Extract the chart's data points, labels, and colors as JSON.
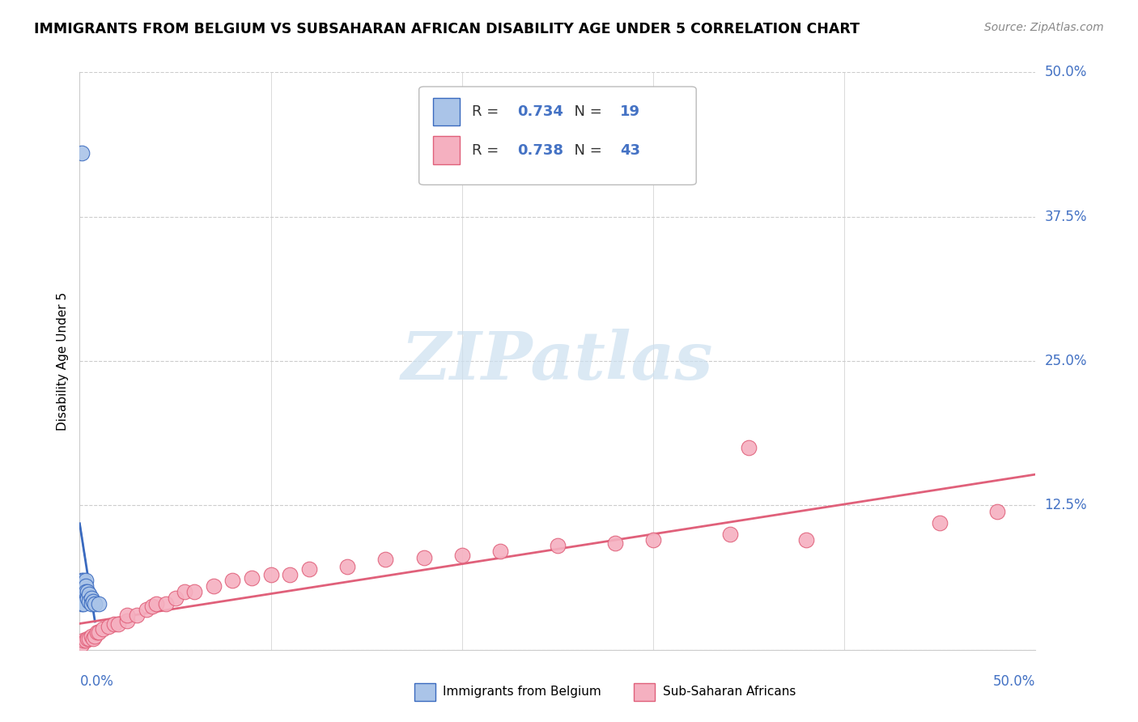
{
  "title": "IMMIGRANTS FROM BELGIUM VS SUBSAHARAN AFRICAN DISABILITY AGE UNDER 5 CORRELATION CHART",
  "source": "Source: ZipAtlas.com",
  "ylabel": "Disability Age Under 5",
  "y_tick_labels": [
    "12.5%",
    "25.0%",
    "37.5%",
    "50.0%"
  ],
  "y_tick_values": [
    0.125,
    0.25,
    0.375,
    0.5
  ],
  "xlim": [
    0,
    0.5
  ],
  "ylim": [
    0,
    0.5
  ],
  "r_belgium": 0.734,
  "n_belgium": 19,
  "r_subsaharan": 0.738,
  "n_subsaharan": 43,
  "legend_label_belgium": "Immigrants from Belgium",
  "legend_label_subsaharan": "Sub-Saharan Africans",
  "color_belgium": "#aac4e8",
  "color_subsaharan": "#f5b0c0",
  "line_color_belgium": "#3a6abf",
  "line_color_subsaharan": "#e0607a",
  "watermark_color": "#cce0f0",
  "belgium_x": [
    0.001,
    0.001,
    0.001,
    0.002,
    0.002,
    0.002,
    0.003,
    0.003,
    0.003,
    0.004,
    0.004,
    0.005,
    0.005,
    0.006,
    0.006,
    0.007,
    0.008,
    0.01,
    0.001
  ],
  "belgium_y": [
    0.06,
    0.05,
    0.04,
    0.06,
    0.055,
    0.04,
    0.06,
    0.055,
    0.05,
    0.05,
    0.045,
    0.048,
    0.042,
    0.045,
    0.04,
    0.042,
    0.04,
    0.04,
    0.43
  ],
  "subsaharan_x": [
    0.001,
    0.002,
    0.003,
    0.004,
    0.005,
    0.006,
    0.007,
    0.008,
    0.009,
    0.01,
    0.012,
    0.015,
    0.018,
    0.02,
    0.025,
    0.025,
    0.03,
    0.035,
    0.038,
    0.04,
    0.045,
    0.05,
    0.055,
    0.06,
    0.07,
    0.08,
    0.09,
    0.1,
    0.11,
    0.12,
    0.14,
    0.16,
    0.18,
    0.2,
    0.22,
    0.25,
    0.28,
    0.3,
    0.34,
    0.38,
    0.35,
    0.45,
    0.48
  ],
  "subsaharan_y": [
    0.005,
    0.008,
    0.008,
    0.01,
    0.01,
    0.012,
    0.01,
    0.012,
    0.015,
    0.015,
    0.018,
    0.02,
    0.022,
    0.022,
    0.025,
    0.03,
    0.03,
    0.035,
    0.038,
    0.04,
    0.04,
    0.045,
    0.05,
    0.05,
    0.055,
    0.06,
    0.062,
    0.065,
    0.065,
    0.07,
    0.072,
    0.078,
    0.08,
    0.082,
    0.085,
    0.09,
    0.092,
    0.095,
    0.1,
    0.095,
    0.175,
    0.11,
    0.12
  ]
}
